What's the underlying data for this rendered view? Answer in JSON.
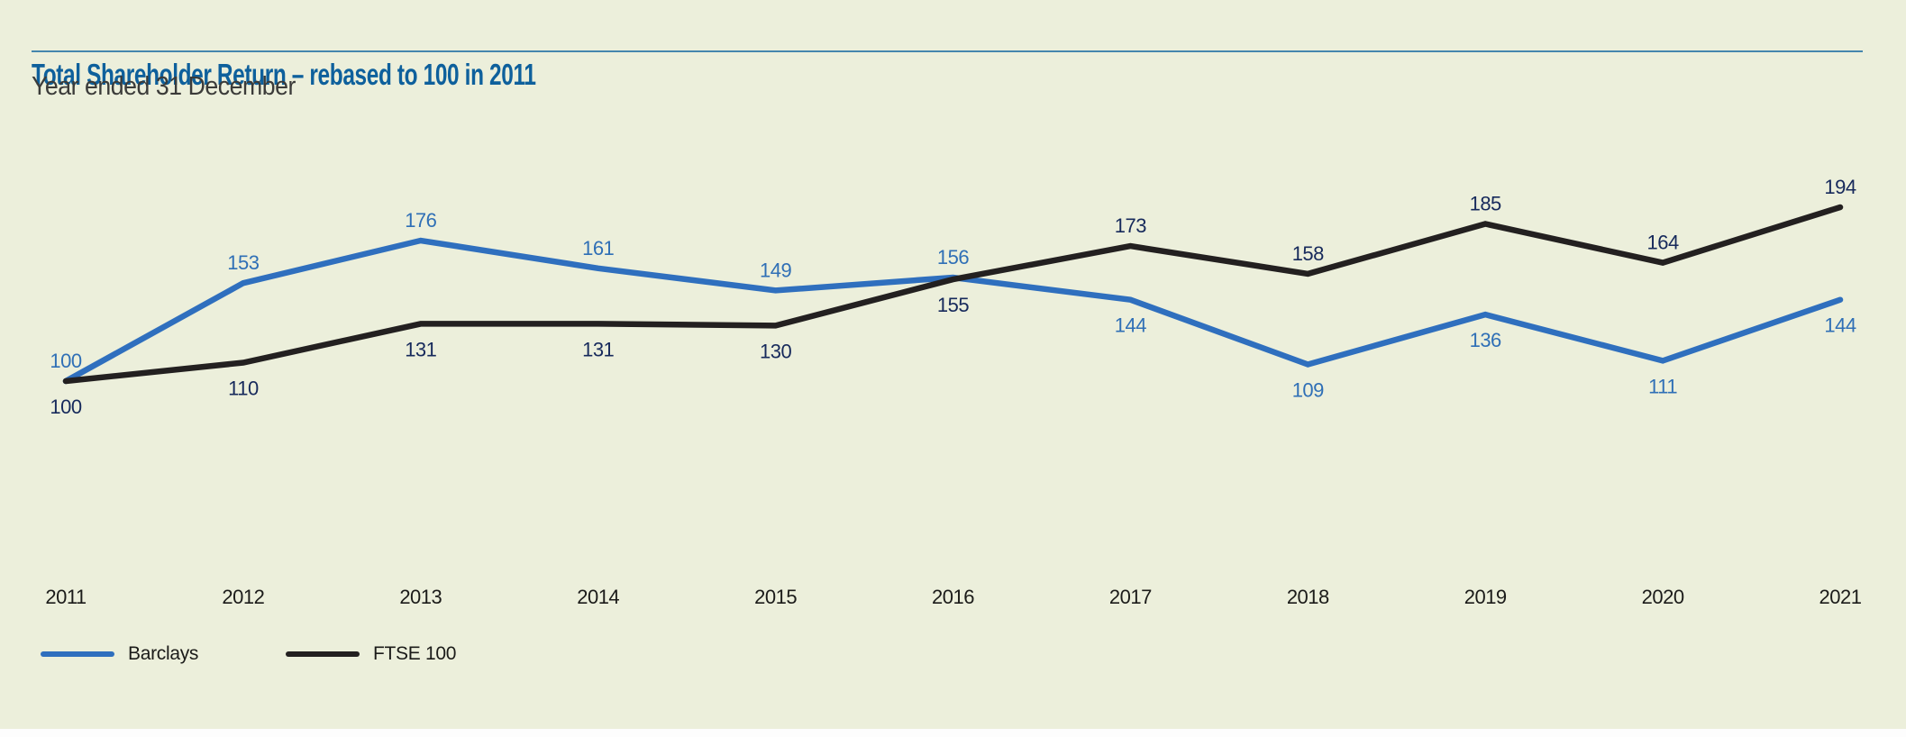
{
  "colors": {
    "background": "#ecefdb",
    "top_rule": "#4586ad",
    "title": "#0e609c",
    "subtitle": "#3b3b39",
    "year_label": "#1b1b19",
    "legend_text": "#1b1b19",
    "bottom_strip": "#fdfdfd"
  },
  "chart_data": {
    "type": "line",
    "title": "Total Shareholder Return – rebased to 100 in 2011",
    "subtitle": "Year ended 31 December",
    "x": [
      "2011",
      "2012",
      "2013",
      "2014",
      "2015",
      "2016",
      "2017",
      "2018",
      "2019",
      "2020",
      "2021"
    ],
    "series": [
      {
        "name": "Barclays",
        "color": "#2f6fbe",
        "label_color": "#2f6fb6",
        "values": [
          100,
          153,
          176,
          161,
          149,
          156,
          144,
          109,
          136,
          111,
          144
        ],
        "label_side": [
          "above",
          "above",
          "above",
          "above",
          "above",
          "above",
          "below",
          "below",
          "below",
          "below",
          "below"
        ]
      },
      {
        "name": "FTSE 100",
        "color": "#232020",
        "label_color": "#16295b",
        "values": [
          100,
          110,
          131,
          131,
          130,
          155,
          173,
          158,
          185,
          164,
          194
        ],
        "label_side": [
          "below",
          "below",
          "below",
          "below",
          "below",
          "below",
          "above",
          "above",
          "above",
          "above",
          "above"
        ]
      }
    ],
    "data_labels": true,
    "grid": false,
    "y_axis_visible": false,
    "x_axis_line_visible": false,
    "ylim": [
      90,
      210
    ],
    "legend_position": "bottom-left"
  }
}
